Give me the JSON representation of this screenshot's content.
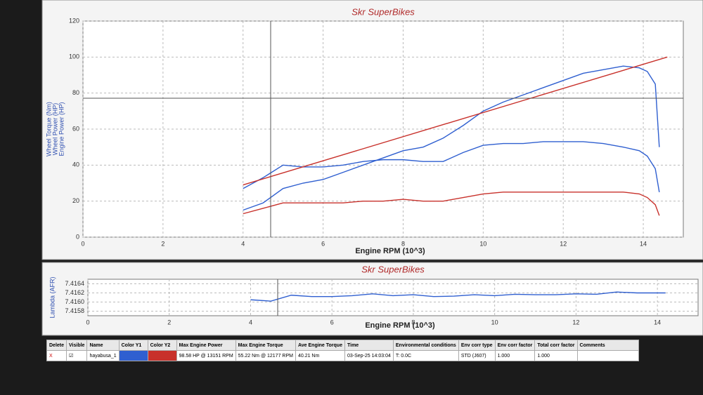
{
  "chart_data": [
    {
      "type": "line",
      "title": "Skr SuperBikes",
      "xlabel": "Engine RPM (10^3)",
      "ylabel": [
        "Wheel Torque (Nm)",
        "Wheel Power (HP)",
        "Engine Power (HP)"
      ],
      "xlim": [
        0,
        15
      ],
      "xticks": [
        0,
        2,
        4,
        6,
        8,
        10,
        12,
        14
      ],
      "ylim": [
        0,
        120
      ],
      "yticks": [
        0,
        20,
        40,
        60,
        80,
        100,
        120
      ],
      "grid": true,
      "series": [
        {
          "color": "#2f5fd0",
          "x": [
            4,
            4.5,
            5,
            5.5,
            6,
            6.5,
            7,
            7.5,
            8,
            8.5,
            9,
            9.5,
            10,
            10.5,
            11,
            11.5,
            12,
            12.5,
            13,
            13.5,
            13.9,
            14.1,
            14.3,
            14.4
          ],
          "values": [
            15,
            19,
            27,
            30,
            32,
            36,
            40,
            44,
            48,
            50,
            55,
            62,
            70,
            75,
            79,
            83,
            87,
            91,
            93,
            95,
            94,
            92,
            85,
            50
          ]
        },
        {
          "color": "#2f5fd0",
          "x": [
            4,
            4.5,
            5,
            5.5,
            6,
            6.5,
            7,
            7.5,
            8,
            8.5,
            9,
            9.5,
            10,
            10.5,
            11,
            11.5,
            12,
            12.5,
            13,
            13.5,
            13.9,
            14.1,
            14.3,
            14.4
          ],
          "values": [
            27,
            33,
            40,
            39,
            39,
            40,
            42,
            43,
            43,
            42,
            42,
            47,
            51,
            52,
            52,
            53,
            53,
            53,
            52,
            50,
            48,
            45,
            38,
            25
          ]
        },
        {
          "color": "#c8312b",
          "x": [
            4,
            4.5,
            5,
            5.5,
            6,
            6.5,
            7,
            7.5,
            8,
            8.5,
            9,
            9.5,
            10,
            10.5,
            11,
            11.5,
            12,
            12.5,
            13,
            13.5,
            13.9,
            14.1,
            14.3,
            14.4
          ],
          "values": [
            13,
            16,
            19,
            19,
            19,
            19,
            20,
            20,
            21,
            20,
            20,
            22,
            24,
            25,
            25,
            25,
            25,
            25,
            25,
            25,
            24,
            22,
            18,
            12
          ]
        },
        {
          "color": "#c8312b",
          "x": [
            4,
            14.6
          ],
          "values": [
            29,
            100
          ]
        }
      ]
    },
    {
      "type": "line",
      "title": "Skr SuperBikes",
      "xlabel": "Engine RPM (10^3)",
      "ylabel": [
        "Lambda (AFR)"
      ],
      "xlim": [
        0,
        15
      ],
      "xticks": [
        0,
        2,
        4,
        6,
        8,
        10,
        12,
        14
      ],
      "ylim": [
        7.4157,
        7.4165
      ],
      "yticks": [
        7.4158,
        {
          "value": 7.416,
          "label": "7.4160"
        },
        7.4162,
        7.4164
      ],
      "grid": true,
      "series": [
        {
          "color": "#2f5fd0",
          "x": [
            4,
            4.5,
            5,
            5.5,
            6,
            6.5,
            7,
            7.5,
            8,
            8.5,
            9,
            9.5,
            10,
            10.5,
            11,
            11.5,
            12,
            12.5,
            13,
            13.5,
            14,
            14.2
          ],
          "values": [
            7.41605,
            7.41602,
            7.41615,
            7.41612,
            7.41612,
            7.41614,
            7.41618,
            7.41614,
            7.41616,
            7.41612,
            7.41613,
            7.41616,
            7.41614,
            7.41617,
            7.41616,
            7.41616,
            7.41618,
            7.41617,
            7.41622,
            7.4162,
            7.4162,
            7.4162
          ]
        }
      ]
    }
  ],
  "table": {
    "headers": [
      "Delete",
      "Visible",
      "Name",
      "Color Y1",
      "Color Y2",
      "Max Engine Power",
      "Max Engine Torque",
      "Ave Engine Torque",
      "Time",
      "Environmental conditions",
      "Env corr type",
      "Env corr factor",
      "Total corr factor",
      "Comments"
    ],
    "row": {
      "delete": "X",
      "name": "hayabusa_1",
      "color_y1": "#2f5fd0",
      "color_y2": "#c8312b",
      "max_power": "98.58 HP @ 13151 RPM",
      "max_torque": "55.22 Nm @ 12177 RPM",
      "ave_torque": "40.21 Nm",
      "time": "03-Sep-25 14:03:04",
      "environment": "T: 0.0C",
      "corr_type": "STD (J607)",
      "corr_factor": "1.000",
      "total_factor": "1.000"
    }
  }
}
